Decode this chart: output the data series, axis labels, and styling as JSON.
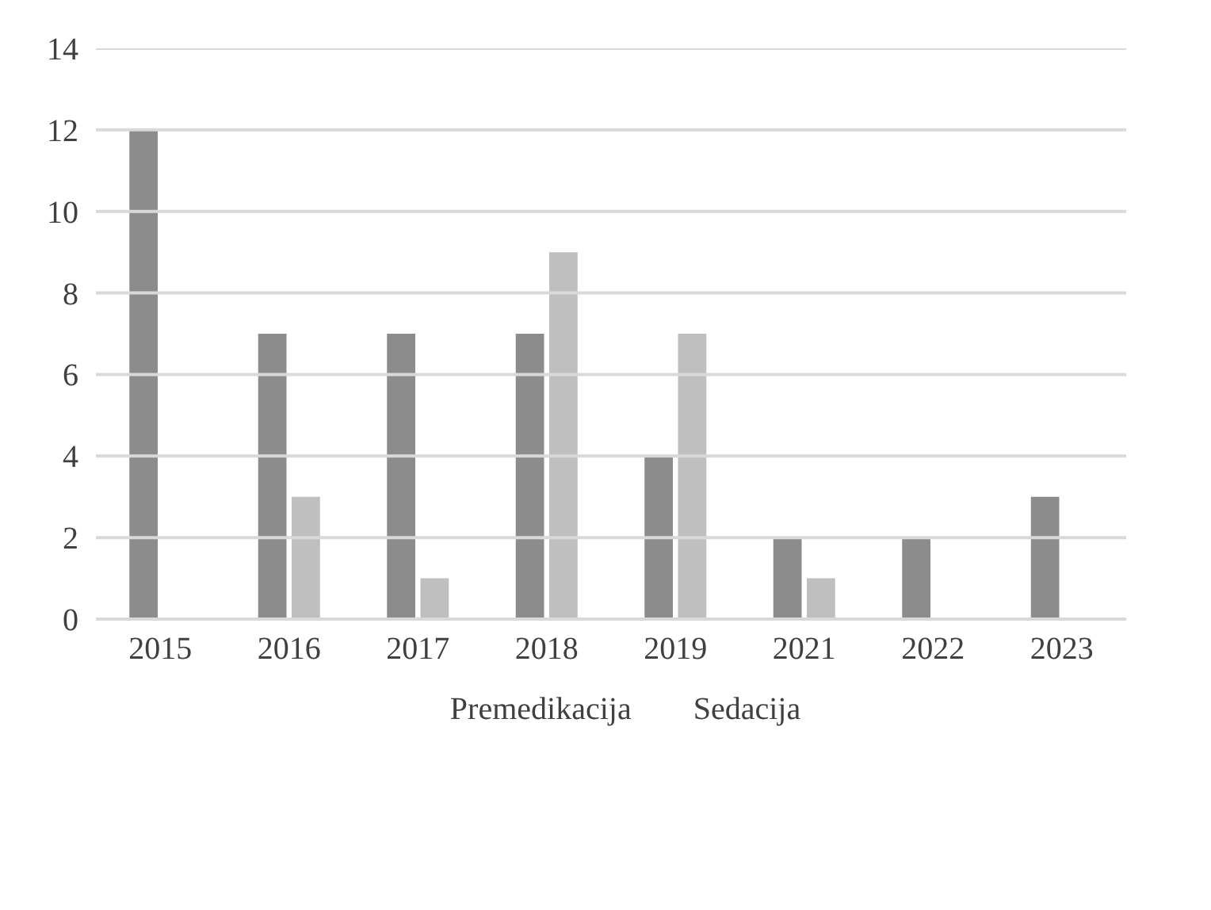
{
  "chart_data": {
    "type": "bar",
    "categories": [
      "2015",
      "2016",
      "2017",
      "2018",
      "2019",
      "2021",
      "2022",
      "2023"
    ],
    "series": [
      {
        "name": "Premedikacija",
        "color": "#8c8c8c",
        "values": [
          12,
          7,
          7,
          7,
          4,
          2,
          2,
          3
        ]
      },
      {
        "name": "Sedacija",
        "color": "#bfbfbf",
        "values": [
          0,
          3,
          1,
          9,
          7,
          1,
          0,
          0
        ]
      }
    ],
    "ylim": [
      0,
      14
    ],
    "yticks": [
      0,
      2,
      4,
      6,
      8,
      10,
      12,
      14
    ],
    "grid": "y",
    "legend": "bottom"
  }
}
